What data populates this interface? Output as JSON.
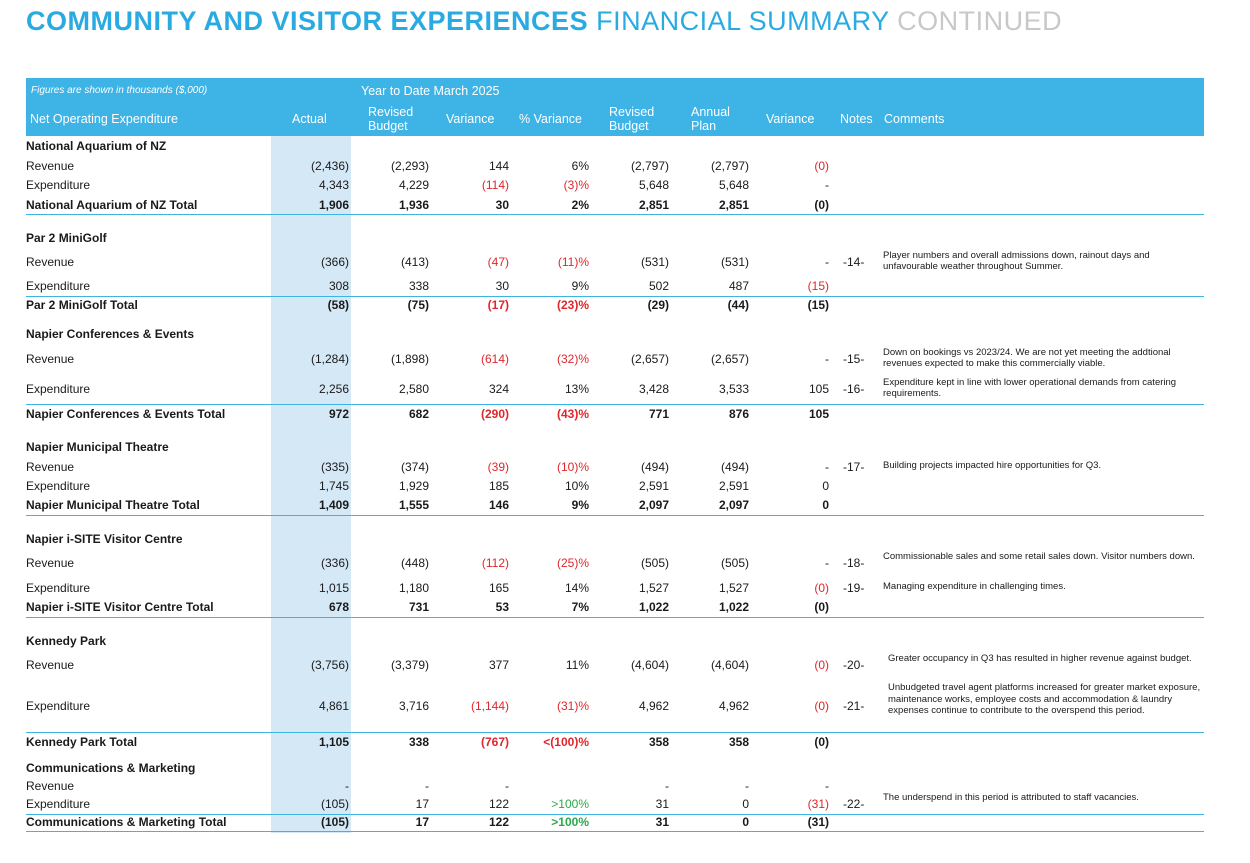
{
  "title": {
    "part1": "COMMUNITY AND VISITOR EXPERIENCES",
    "part2": "FINANCIAL SUMMARY",
    "part3": "CONTINUED"
  },
  "header": {
    "figures_note": "Figures are shown in thousands ($,000)",
    "period": "Year to Date March 2025",
    "col_name": "Net Operating Expenditure",
    "actual": "Actual",
    "revised_budget": "Revised Budget",
    "variance": "Variance",
    "pct_variance": "% Variance",
    "revised_budget2": "Revised Budget",
    "annual_plan": "Annual Plan",
    "variance2": "Variance",
    "notes": "Notes",
    "comments": "Comments"
  },
  "sections": [
    {
      "name": "National Aquarium of NZ",
      "rows": [
        {
          "label": "Revenue",
          "vals": [
            "(2,436)",
            "(2,293)",
            "144",
            "6%",
            "(2,797)",
            "(2,797)",
            "(0)"
          ],
          "note": "",
          "comment": ""
        },
        {
          "label": "Expenditure",
          "vals": [
            "4,343",
            "4,229",
            "(114)",
            "(3)%",
            "5,648",
            "5,648",
            "-"
          ],
          "note": "",
          "comment": ""
        },
        {
          "label": "National Aquarium of NZ Total",
          "vals": [
            "1,906",
            "1,936",
            "30",
            "2%",
            "2,851",
            "2,851",
            "(0)"
          ],
          "note": "",
          "comment": ""
        }
      ]
    },
    {
      "name": "Par 2 MiniGolf",
      "rows": [
        {
          "label": "Revenue",
          "vals": [
            "(366)",
            "(413)",
            "(47)",
            "(11)%",
            "(531)",
            "(531)",
            "-"
          ],
          "note": "-14-",
          "comment": "Player numbers and overall admissions down, rainout days and unfavourable weather throughout Summer."
        },
        {
          "label": "Expenditure",
          "vals": [
            "308",
            "338",
            "30",
            "9%",
            "502",
            "487",
            "(15)"
          ],
          "note": "",
          "comment": ""
        },
        {
          "label": "Par 2 MiniGolf Total",
          "vals": [
            "(58)",
            "(75)",
            "(17)",
            "(23)%",
            "(29)",
            "(44)",
            "(15)"
          ],
          "note": "",
          "comment": ""
        }
      ]
    },
    {
      "name": "Napier Conferences & Events",
      "rows": [
        {
          "label": "Revenue",
          "vals": [
            "(1,284)",
            "(1,898)",
            "(614)",
            "(32)%",
            "(2,657)",
            "(2,657)",
            "-"
          ],
          "note": "-15-",
          "comment": "Down on bookings vs 2023/24.  We are not yet meeting the addtional revenues expected to make this commercially viable."
        },
        {
          "label": "Expenditure",
          "vals": [
            "2,256",
            "2,580",
            "324",
            "13%",
            "3,428",
            "3,533",
            "105"
          ],
          "note": "-16-",
          "comment": "Expenditure kept in line with lower operational demands from catering requirements."
        },
        {
          "label": "Napier Conferences & Events Total",
          "vals": [
            "972",
            "682",
            "(290)",
            "(43)%",
            "771",
            "876",
            "105"
          ],
          "note": "",
          "comment": ""
        }
      ]
    },
    {
      "name": "Napier Municipal Theatre",
      "rows": [
        {
          "label": "Revenue",
          "vals": [
            "(335)",
            "(374)",
            "(39)",
            "(10)%",
            "(494)",
            "(494)",
            "-"
          ],
          "note": "-17-",
          "comment": "Building projects impacted hire opportunities for Q3."
        },
        {
          "label": "Expenditure",
          "vals": [
            "1,745",
            "1,929",
            "185",
            "10%",
            "2,591",
            "2,591",
            "0"
          ],
          "note": "",
          "comment": ""
        },
        {
          "label": "Napier Municipal Theatre Total",
          "vals": [
            "1,409",
            "1,555",
            "146",
            "9%",
            "2,097",
            "2,097",
            "0"
          ],
          "note": "",
          "comment": ""
        }
      ]
    },
    {
      "name": "Napier i-SITE Visitor Centre",
      "rows": [
        {
          "label": "Revenue",
          "vals": [
            "(336)",
            "(448)",
            "(112)",
            "(25)%",
            "(505)",
            "(505)",
            "-"
          ],
          "note": "-18-",
          "comment": "Commissionable sales and some retail sales down. Visitor numbers down."
        },
        {
          "label": "Expenditure",
          "vals": [
            "1,015",
            "1,180",
            "165",
            "14%",
            "1,527",
            "1,527",
            "(0)"
          ],
          "note": "-19-",
          "comment": "Managing expenditure in challenging times."
        },
        {
          "label": "Napier i-SITE Visitor Centre Total",
          "vals": [
            "678",
            "731",
            "53",
            "7%",
            "1,022",
            "1,022",
            "(0)"
          ],
          "note": "",
          "comment": ""
        }
      ]
    },
    {
      "name": "Kennedy Park",
      "rows": [
        {
          "label": "Revenue",
          "vals": [
            "(3,756)",
            "(3,379)",
            "377",
            "11%",
            "(4,604)",
            "(4,604)",
            "(0)"
          ],
          "note": "-20-",
          "comment": "Greater occupancy in Q3 has resulted in higher revenue against budget."
        },
        {
          "label": "Expenditure",
          "vals": [
            "4,861",
            "3,716",
            "(1,144)",
            "(31)%",
            "4,962",
            "4,962",
            "(0)"
          ],
          "note": "-21-",
          "comment": "Unbudgeted travel agent platforms increased for greater market exposure, maintenance works, employee costs and accommodation & laundry expenses continue to contribute to the overspend this period."
        },
        {
          "label": "Kennedy Park Total",
          "vals": [
            "1,105",
            "338",
            "(767)",
            "<(100)%",
            "358",
            "358",
            "(0)"
          ],
          "note": "",
          "comment": ""
        }
      ]
    },
    {
      "name": "Communications & Marketing",
      "rows": [
        {
          "label": "Revenue",
          "vals": [
            "-",
            "-",
            "-",
            "",
            "-",
            "-",
            "-"
          ],
          "note": "",
          "comment": ""
        },
        {
          "label": "Expenditure",
          "vals": [
            "(105)",
            "17",
            "122",
            ">100%",
            "31",
            "0",
            "(31)"
          ],
          "note": "-22-",
          "comment": "The underspend in this period is attributed to staff vacancies."
        },
        {
          "label": "Communications & Marketing Total",
          "vals": [
            "(105)",
            "17",
            "122",
            ">100%",
            "31",
            "0",
            "(31)"
          ],
          "note": "",
          "comment": ""
        }
      ]
    }
  ]
}
